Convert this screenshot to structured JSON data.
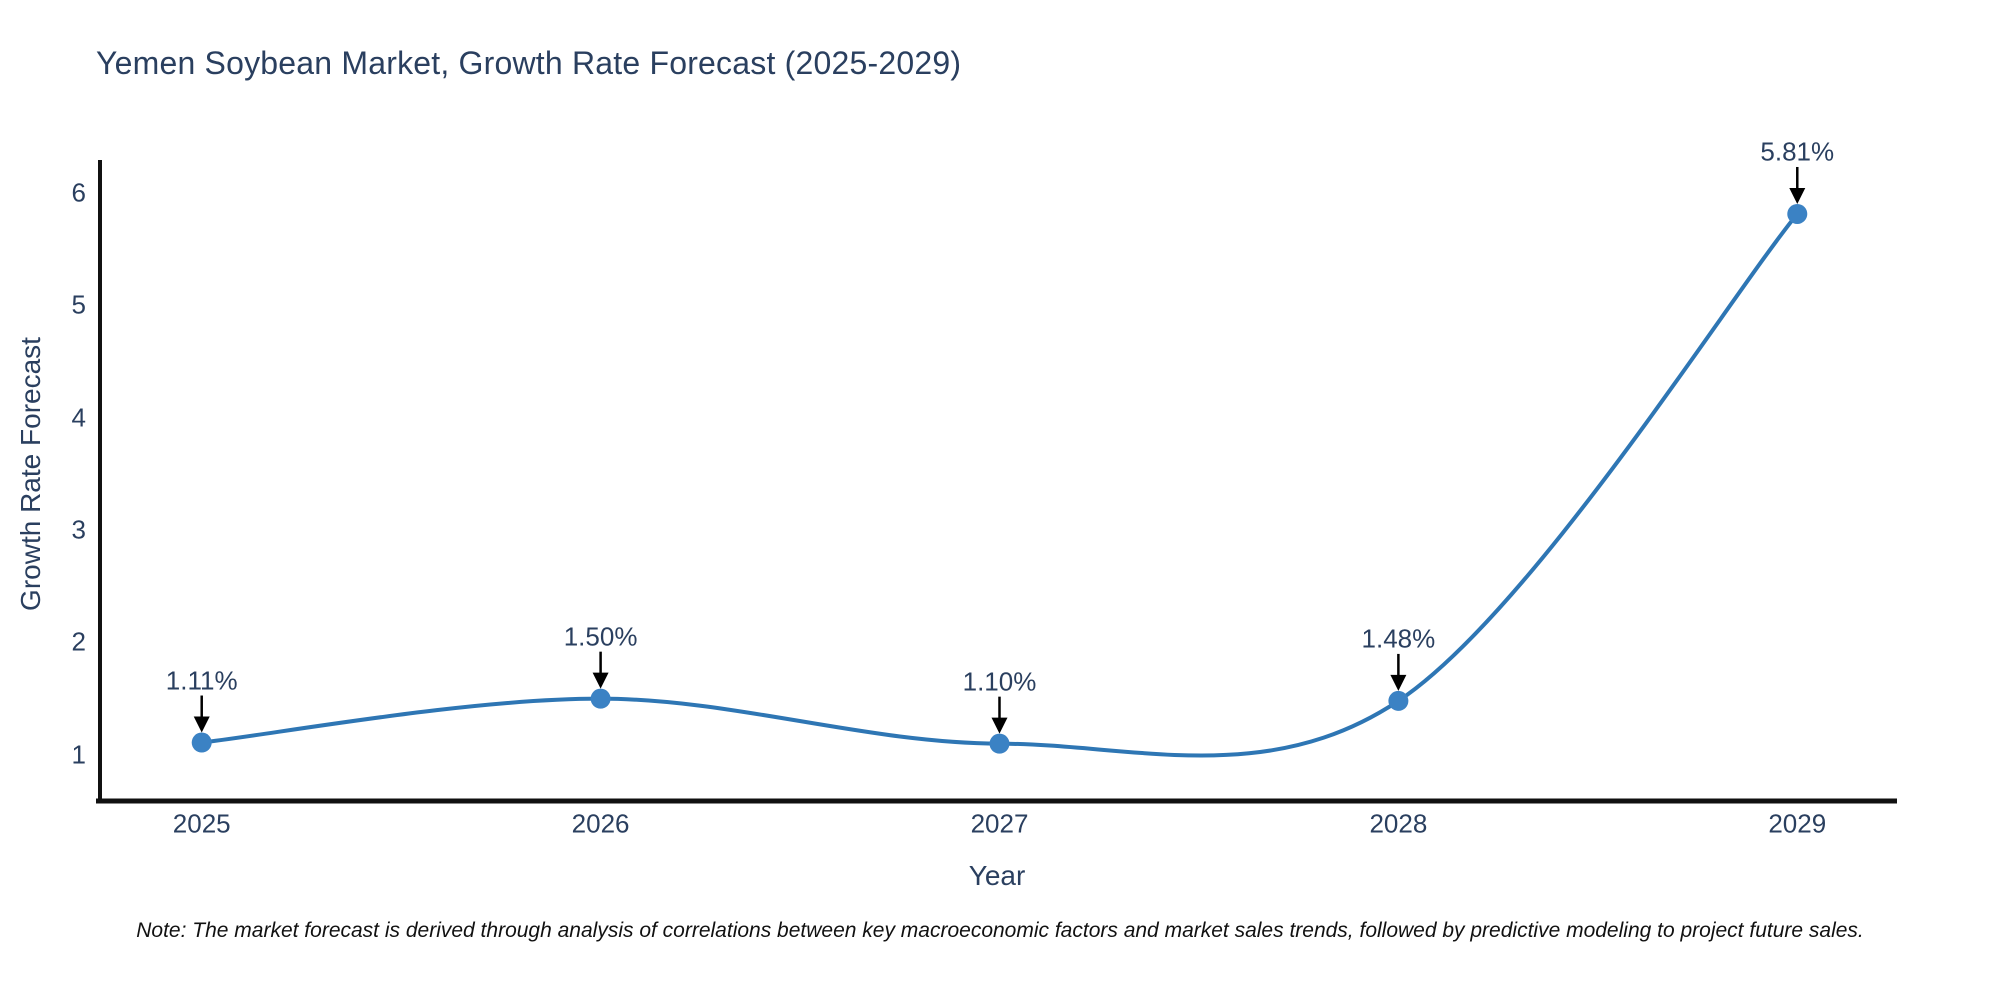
{
  "chart_data": {
    "type": "line",
    "title": "Yemen Soybean Market, Growth Rate Forecast (2025-2029)",
    "xlabel": "Year",
    "ylabel": "Growth Rate Forecast",
    "categories": [
      2025,
      2026,
      2027,
      2028,
      2029
    ],
    "series": [
      {
        "name": "Growth Rate Forecast",
        "values": [
          1.11,
          1.5,
          1.1,
          1.48,
          5.81
        ],
        "point_labels": [
          "1.11%",
          "1.50%",
          "1.10%",
          "1.48%",
          "5.81%"
        ]
      }
    ],
    "yticks": [
      1,
      2,
      3,
      4,
      5,
      6
    ],
    "xlim": [
      2024.74,
      2029.25
    ],
    "ylim": [
      0.59,
      6.29
    ],
    "grid": false,
    "legend": "none",
    "line_shape": "spline",
    "colors": {
      "line": "#2e76b4",
      "marker": "#3b82c4",
      "axis": "#111111",
      "text": "#2a3f5f",
      "annotation_arrow": "#000000",
      "note_text": "#111111",
      "background": "#ffffff"
    },
    "note": "Note: The market forecast is derived through analysis of correlations between key macroeconomic factors and market sales trends, followed by predictive modeling to project future sales."
  }
}
